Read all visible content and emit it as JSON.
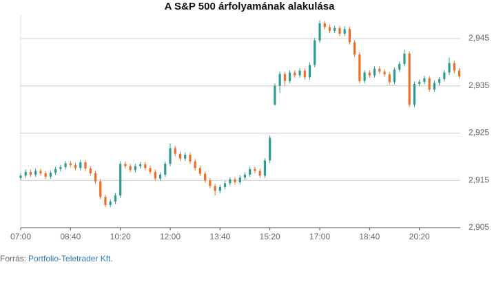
{
  "chart_data": {
    "type": "candlestick",
    "title": "A S&P 500 árfolyamának alakulása",
    "source_label": "Forrás:",
    "source_name": "Portfolio-Teletrader Kft.",
    "up_color": "#2a9d8f",
    "down_color": "#e8702a",
    "grid": true,
    "xlim": [
      420,
      1302
    ],
    "xticks": [
      {
        "value": 420,
        "label": "07:00"
      },
      {
        "value": 520,
        "label": "08:40"
      },
      {
        "value": 620,
        "label": "10:20"
      },
      {
        "value": 720,
        "label": "12:00"
      },
      {
        "value": 820,
        "label": "13:40"
      },
      {
        "value": 920,
        "label": "15:20"
      },
      {
        "value": 1020,
        "label": "17:00"
      },
      {
        "value": 1120,
        "label": "18:40"
      },
      {
        "value": 1220,
        "label": "20:20"
      }
    ],
    "ylim": [
      2905,
      2949.5
    ],
    "yticks": [
      {
        "value": 2905,
        "label": "2,905"
      },
      {
        "value": 2915,
        "label": "2,915"
      },
      {
        "value": 2925,
        "label": "2,925"
      },
      {
        "value": 2935,
        "label": "2,935"
      },
      {
        "value": 2945,
        "label": "2,945"
      }
    ],
    "x": [
      420,
      430,
      440,
      450,
      460,
      470,
      480,
      490,
      500,
      510,
      520,
      530,
      540,
      550,
      560,
      570,
      580,
      590,
      600,
      610,
      620,
      630,
      640,
      650,
      660,
      670,
      680,
      690,
      700,
      710,
      720,
      730,
      740,
      750,
      760,
      770,
      780,
      790,
      800,
      810,
      820,
      830,
      840,
      850,
      860,
      870,
      880,
      890,
      900,
      910,
      920,
      930,
      940,
      950,
      960,
      970,
      980,
      990,
      1000,
      1010,
      1020,
      1030,
      1040,
      1050,
      1060,
      1070,
      1080,
      1090,
      1100,
      1110,
      1120,
      1130,
      1140,
      1150,
      1160,
      1170,
      1180,
      1190,
      1200,
      1210,
      1220,
      1230,
      1240,
      1250,
      1260,
      1270,
      1280,
      1290,
      1300
    ],
    "open": [
      2915.5,
      2916.0,
      2916.8,
      2916.2,
      2917.0,
      2916.5,
      2915.8,
      2916.6,
      2917.4,
      2917.8,
      2918.6,
      2918.2,
      2917.6,
      2918.8,
      2917.5,
      2916.5,
      2914.8,
      2911.5,
      2909.8,
      2910.5,
      2911.8,
      2918.5,
      2918.0,
      2917.2,
      2918.0,
      2918.4,
      2917.6,
      2916.8,
      2915.4,
      2916.2,
      2918.5,
      2921.8,
      2920.6,
      2919.6,
      2920.4,
      2919.0,
      2917.6,
      2916.4,
      2915.0,
      2913.8,
      2912.8,
      2913.6,
      2914.4,
      2915.2,
      2914.6,
      2915.6,
      2916.2,
      2917.4,
      2917.0,
      2916.0,
      2919.2,
      2931.0,
      2935.0,
      2937.5,
      2936.0,
      2937.8,
      2937.2,
      2938.2,
      2936.8,
      2939.4,
      2944.6,
      2948.2,
      2947.4,
      2946.6,
      2947.2,
      2946.0,
      2947.0,
      2944.2,
      2941.6,
      2936.0,
      2937.8,
      2937.2,
      2938.6,
      2938.0,
      2937.4,
      2935.8,
      2938.4,
      2939.6,
      2941.8,
      2931.0,
      2935.4,
      2935.8,
      2936.6,
      2934.2,
      2935.6,
      2936.4,
      2937.8,
      2939.8,
      2938.2
    ],
    "high": [
      2916.5,
      2917.3,
      2917.3,
      2917.5,
      2917.5,
      2917.0,
      2917.1,
      2917.9,
      2918.3,
      2919.1,
      2919.1,
      2918.7,
      2919.3,
      2919.3,
      2918.0,
      2917.0,
      2915.3,
      2912.0,
      2911.0,
      2912.3,
      2919.0,
      2919.0,
      2918.5,
      2918.5,
      2918.9,
      2918.9,
      2918.1,
      2917.3,
      2916.7,
      2919.0,
      2922.8,
      2922.3,
      2921.1,
      2920.9,
      2920.9,
      2919.5,
      2918.1,
      2916.9,
      2915.5,
      2914.3,
      2914.1,
      2914.9,
      2915.7,
      2915.7,
      2916.1,
      2916.7,
      2917.9,
      2917.9,
      2917.5,
      2919.7,
      2924.5,
      2935.5,
      2938.0,
      2938.0,
      2938.3,
      2938.3,
      2938.7,
      2938.7,
      2939.9,
      2945.1,
      2948.8,
      2948.7,
      2947.9,
      2947.7,
      2947.7,
      2947.6,
      2947.5,
      2944.7,
      2942.1,
      2938.3,
      2938.3,
      2939.1,
      2939.1,
      2938.5,
      2937.9,
      2938.9,
      2940.1,
      2942.7,
      2942.3,
      2935.9,
      2936.3,
      2937.1,
      2937.1,
      2936.1,
      2936.9,
      2938.3,
      2941.0,
      2940.3,
      2938.7
    ],
    "low": [
      2915.0,
      2915.5,
      2915.7,
      2915.7,
      2916.0,
      2915.3,
      2915.3,
      2916.1,
      2916.9,
      2917.3,
      2917.7,
      2917.1,
      2917.1,
      2917.0,
      2916.0,
      2914.3,
      2911.0,
      2909.3,
      2909.3,
      2910.0,
      2911.3,
      2917.5,
      2916.7,
      2916.7,
      2917.5,
      2917.1,
      2916.3,
      2914.9,
      2914.9,
      2915.7,
      2918.0,
      2920.1,
      2919.1,
      2919.1,
      2918.5,
      2917.1,
      2915.9,
      2914.5,
      2913.3,
      2911.8,
      2912.3,
      2913.1,
      2913.9,
      2914.1,
      2914.1,
      2915.1,
      2915.7,
      2916.5,
      2915.5,
      2915.5,
      2918.7,
      2930.8,
      2933.5,
      2935.0,
      2935.5,
      2936.7,
      2936.7,
      2936.3,
      2936.3,
      2938.9,
      2944.1,
      2946.9,
      2946.1,
      2946.1,
      2945.5,
      2945.5,
      2943.7,
      2941.1,
      2935.5,
      2935.5,
      2936.7,
      2936.7,
      2937.5,
      2936.9,
      2935.3,
      2935.3,
      2937.9,
      2939.1,
      2930.5,
      2930.5,
      2934.9,
      2935.3,
      2933.7,
      2933.7,
      2935.1,
      2935.9,
      2937.3,
      2937.7,
      2936.5
    ],
    "close": [
      2916.0,
      2916.8,
      2916.2,
      2917.0,
      2916.5,
      2915.8,
      2916.6,
      2917.4,
      2917.8,
      2918.6,
      2918.2,
      2917.6,
      2918.8,
      2917.5,
      2916.5,
      2914.8,
      2911.5,
      2909.8,
      2910.5,
      2911.8,
      2918.5,
      2918.0,
      2917.2,
      2918.0,
      2918.4,
      2917.6,
      2916.8,
      2915.4,
      2916.2,
      2918.5,
      2921.8,
      2920.6,
      2919.6,
      2920.4,
      2919.0,
      2917.6,
      2916.4,
      2915.0,
      2913.8,
      2912.8,
      2913.6,
      2914.4,
      2915.2,
      2914.6,
      2915.6,
      2916.2,
      2917.4,
      2917.0,
      2916.0,
      2919.2,
      2924.0,
      2935.0,
      2937.5,
      2936.0,
      2937.8,
      2937.2,
      2938.2,
      2936.8,
      2939.4,
      2944.6,
      2948.2,
      2947.4,
      2946.6,
      2947.2,
      2946.0,
      2947.0,
      2944.2,
      2941.6,
      2936.0,
      2937.8,
      2937.2,
      2938.6,
      2938.0,
      2937.4,
      2935.8,
      2938.4,
      2939.6,
      2941.8,
      2931.0,
      2935.4,
      2935.8,
      2936.6,
      2934.2,
      2935.6,
      2936.4,
      2937.8,
      2939.8,
      2938.2,
      2937.0
    ]
  }
}
